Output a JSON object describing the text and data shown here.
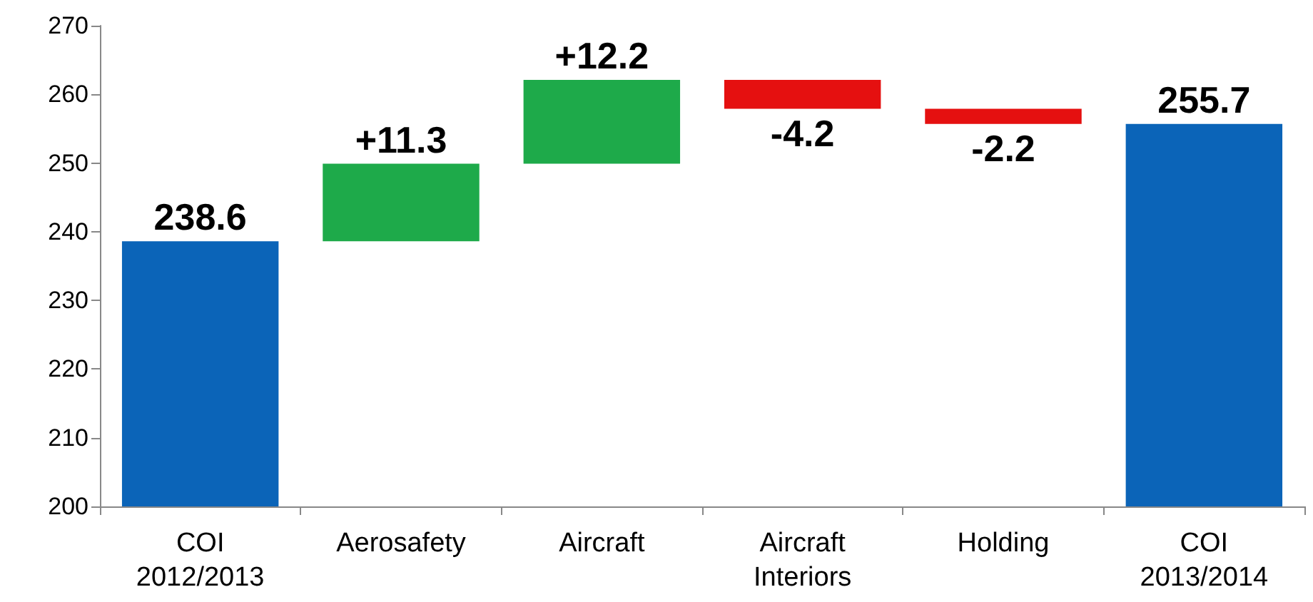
{
  "chart_data": {
    "type": "bar",
    "categories": [
      "COI\n2012/2013",
      "Aerosafety",
      "Aircraft",
      "Aircraft\nInteriors",
      "Holding",
      "COI\n2013/2014"
    ],
    "values": [
      238.6,
      11.3,
      12.2,
      -4.2,
      -2.2,
      255.7
    ],
    "base": [
      0,
      238.6,
      249.9,
      262.1,
      257.9,
      0
    ],
    "colors": [
      "#0b64b8",
      "#1eaa4a",
      "#1eaa4a",
      "#e51010",
      "#e51010",
      "#0b64b8"
    ],
    "value_labels": [
      "238.6",
      "+11.3",
      "+12.2",
      "-4.2",
      "-2.2",
      "255.7"
    ],
    "ylim": [
      200,
      270
    ],
    "yticks": [
      200,
      210,
      220,
      230,
      240,
      250,
      260,
      270
    ],
    "grid": false
  }
}
